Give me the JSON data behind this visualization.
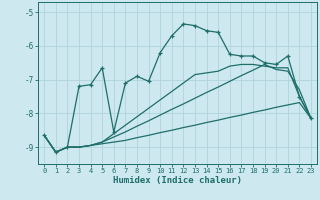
{
  "xlabel": "Humidex (Indice chaleur)",
  "xlim": [
    -0.5,
    23.5
  ],
  "ylim": [
    -9.5,
    -4.7
  ],
  "yticks": [
    -9,
    -8,
    -7,
    -6,
    -5
  ],
  "xticks": [
    0,
    1,
    2,
    3,
    4,
    5,
    6,
    7,
    8,
    9,
    10,
    11,
    12,
    13,
    14,
    15,
    16,
    17,
    18,
    19,
    20,
    21,
    22,
    23
  ],
  "bg_color": "#cde8ef",
  "grid_color": "#b0d4dc",
  "line_color": "#1e6e6a",
  "lines": [
    {
      "x": [
        0,
        1,
        2,
        3,
        4,
        5,
        6,
        7,
        8,
        9,
        10,
        11,
        12,
        13,
        14,
        15,
        16,
        17,
        18,
        19,
        20,
        21,
        22,
        23
      ],
      "y": [
        -8.65,
        -9.15,
        -9.0,
        -9.0,
        -8.95,
        -8.9,
        -8.85,
        -8.8,
        -8.72,
        -8.65,
        -8.57,
        -8.5,
        -8.42,
        -8.35,
        -8.27,
        -8.2,
        -8.12,
        -8.05,
        -7.97,
        -7.9,
        -7.82,
        -7.75,
        -7.68,
        -8.15
      ],
      "marker": false,
      "lw": 0.9
    },
    {
      "x": [
        0,
        1,
        2,
        3,
        4,
        5,
        6,
        7,
        8,
        9,
        10,
        11,
        12,
        13,
        14,
        15,
        16,
        17,
        18,
        19,
        20,
        21,
        22,
        23
      ],
      "y": [
        -8.65,
        -9.15,
        -9.0,
        -9.0,
        -8.95,
        -8.85,
        -8.7,
        -8.55,
        -8.38,
        -8.22,
        -8.05,
        -7.88,
        -7.72,
        -7.55,
        -7.38,
        -7.22,
        -7.05,
        -6.88,
        -6.72,
        -6.55,
        -6.7,
        -6.75,
        -7.3,
        -8.15
      ],
      "marker": false,
      "lw": 0.9
    },
    {
      "x": [
        0,
        1,
        2,
        3,
        4,
        5,
        6,
        7,
        8,
        9,
        10,
        11,
        12,
        13,
        14,
        15,
        16,
        17,
        18,
        19,
        20,
        21,
        22,
        23
      ],
      "y": [
        -8.65,
        -9.15,
        -9.0,
        -9.0,
        -8.95,
        -8.85,
        -8.6,
        -8.35,
        -8.1,
        -7.85,
        -7.6,
        -7.35,
        -7.1,
        -6.85,
        -6.8,
        -6.75,
        -6.6,
        -6.55,
        -6.55,
        -6.6,
        -6.65,
        -6.65,
        -7.5,
        -8.15
      ],
      "marker": false,
      "lw": 0.9
    },
    {
      "x": [
        0,
        1,
        2,
        3,
        4,
        5,
        6,
        7,
        8,
        9,
        10,
        11,
        12,
        13,
        14,
        15,
        16,
        17,
        18,
        19,
        20,
        21,
        22,
        23
      ],
      "y": [
        -8.65,
        -9.15,
        -9.0,
        -7.2,
        -7.15,
        -6.65,
        -8.55,
        -7.1,
        -6.9,
        -7.05,
        -6.2,
        -5.7,
        -5.35,
        -5.4,
        -5.55,
        -5.6,
        -6.25,
        -6.3,
        -6.3,
        -6.5,
        -6.55,
        -6.3,
        -7.5,
        -8.15
      ],
      "marker": true,
      "lw": 0.9
    }
  ]
}
